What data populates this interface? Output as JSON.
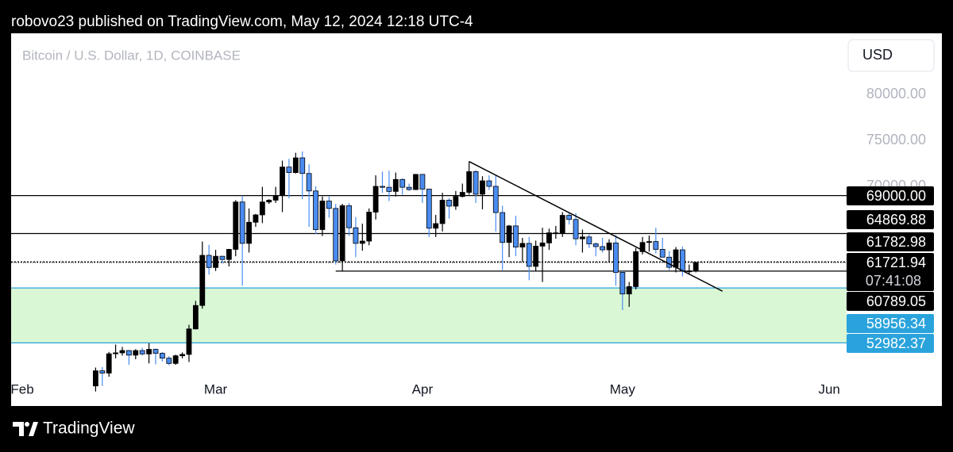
{
  "header": {
    "text": "robovo23 published on TradingView.com, May 12, 2024 12:18 UTC-4"
  },
  "footer": {
    "brand": "TradingView"
  },
  "chart_data": {
    "type": "candlestick",
    "title": "Bitcoin / U.S. Dollar, 1D, COINBASE",
    "currency": "USD",
    "xlim": [
      -1.67,
      123.6
    ],
    "xticks": [
      {
        "value": 0,
        "label": "Feb"
      },
      {
        "value": 29,
        "label": "Mar"
      },
      {
        "value": 60,
        "label": "Apr"
      },
      {
        "value": 90,
        "label": "May"
      },
      {
        "value": 121,
        "label": "Jun"
      }
    ],
    "ylim": [
      46120,
      86640
    ],
    "yticks": [
      {
        "value": 70000,
        "label": "70000.00"
      },
      {
        "value": 75000,
        "label": "75000.00"
      },
      {
        "value": 80000,
        "label": "80000.00"
      }
    ],
    "up_color": "#000000",
    "down_color": "#4a8cf0",
    "candles": {
      "x": [
        11,
        12,
        13,
        14,
        15,
        16,
        17,
        18,
        19,
        20,
        21,
        22,
        23,
        24,
        25,
        26,
        27,
        28,
        29,
        30,
        31,
        32,
        33,
        34,
        35,
        36,
        37,
        38,
        39,
        40,
        41,
        42,
        43,
        44,
        45,
        46,
        47,
        48,
        49,
        50,
        51,
        52,
        53,
        54,
        55,
        56,
        57,
        58,
        59,
        60,
        61,
        62,
        63,
        64,
        65,
        66,
        67,
        68,
        69,
        70,
        71,
        72,
        73,
        74,
        75,
        76,
        77,
        78,
        79,
        80,
        81,
        82,
        83,
        84,
        85,
        86,
        87,
        88,
        89,
        90,
        91,
        92,
        93,
        94,
        95,
        96,
        97,
        98,
        99,
        100,
        101
      ],
      "open": [
        48300,
        49950,
        49700,
        51800,
        51900,
        52150,
        51650,
        52150,
        51780,
        52280,
        51850,
        51320,
        50750,
        51580,
        51730,
        54500,
        57050,
        62500,
        61180,
        62400,
        62050,
        63150,
        68300,
        63800,
        66100,
        66900,
        68300,
        68500,
        69000,
        72100,
        71500,
        73100,
        71400,
        69500,
        65300,
        68400,
        67600,
        61900,
        67900,
        65500,
        63800,
        64050,
        67200,
        70000,
        69900,
        69450,
        70750,
        69900,
        69650,
        71300,
        69700,
        65450,
        65950,
        68500,
        67850,
        68900,
        69350,
        71600,
        69150,
        70600,
        70000,
        67150,
        63900,
        65700,
        63400,
        63800,
        61300,
        63500,
        63850,
        64950,
        64950,
        66850,
        66400,
        64300,
        64500,
        63750,
        63450,
        63100,
        63850,
        60650,
        58300,
        59100,
        62900,
        63900,
        64000,
        63150,
        62300,
        61200,
        63100,
        60800,
        60800
      ],
      "high": [
        50300,
        50350,
        52000,
        52800,
        52550,
        52200,
        52300,
        52450,
        52950,
        52370,
        52000,
        51540,
        51700,
        51950,
        54950,
        57550,
        64000,
        63650,
        63100,
        62450,
        63200,
        68500,
        69000,
        67600,
        67000,
        69950,
        68600,
        69950,
        72800,
        73000,
        73650,
        73800,
        72400,
        70000,
        68900,
        68900,
        68100,
        68100,
        68200,
        66650,
        65950,
        67600,
        71200,
        71600,
        71700,
        71500,
        70900,
        70300,
        71350,
        71300,
        69700,
        66900,
        69300,
        68700,
        69500,
        70300,
        72700,
        71750,
        71100,
        71200,
        71250,
        67900,
        65800,
        66800,
        64400,
        64500,
        64100,
        65500,
        65400,
        65700,
        67200,
        67200,
        67100,
        65300,
        64800,
        63900,
        64400,
        64250,
        64700,
        60800,
        59600,
        63300,
        64500,
        64650,
        65500,
        64400,
        62980,
        63400,
        63450,
        61500,
        61800
      ],
      "low": [
        47700,
        48300,
        49300,
        51300,
        51600,
        50600,
        51200,
        51600,
        50750,
        50650,
        50950,
        50550,
        50600,
        51300,
        50900,
        54450,
        56700,
        60400,
        60800,
        61600,
        61300,
        62400,
        59200,
        62800,
        65600,
        66000,
        68100,
        68200,
        67200,
        68700,
        71400,
        68600,
        65600,
        64800,
        64600,
        66600,
        61500,
        60800,
        64600,
        62300,
        63000,
        63600,
        66400,
        69300,
        68400,
        68900,
        69100,
        69500,
        69600,
        68200,
        64500,
        64500,
        65100,
        66500,
        67450,
        68800,
        69100,
        68200,
        67500,
        69600,
        65100,
        60900,
        62300,
        62400,
        61800,
        59800,
        60800,
        59600,
        63100,
        64300,
        64500,
        65850,
        63600,
        62800,
        63300,
        62400,
        62800,
        61800,
        59200,
        56550,
        56900,
        58800,
        62600,
        62900,
        62700,
        62300,
        60900,
        60650,
        60200,
        60500,
        60650
      ],
      "close": [
        49950,
        49700,
        51800,
        51900,
        52150,
        51650,
        52150,
        51780,
        52280,
        51850,
        51320,
        50750,
        51580,
        51730,
        54500,
        57050,
        62500,
        61180,
        62400,
        62050,
        63150,
        68300,
        63800,
        66100,
        66900,
        68300,
        68500,
        69000,
        72100,
        71500,
        73100,
        71400,
        69500,
        65300,
        68400,
        67600,
        61900,
        67900,
        65500,
        63800,
        64050,
        67200,
        70000,
        69900,
        69450,
        70750,
        69900,
        69650,
        71300,
        69700,
        65450,
        65950,
        68500,
        67850,
        68900,
        69350,
        71600,
        69150,
        70600,
        70000,
        67150,
        63900,
        65700,
        63400,
        63800,
        61300,
        63500,
        63850,
        64950,
        64950,
        66850,
        66400,
        64300,
        64500,
        63750,
        63450,
        63100,
        63850,
        60650,
        58300,
        59100,
        62900,
        63900,
        64000,
        63150,
        62300,
        61200,
        63100,
        60800,
        60800,
        61721.94
      ]
    },
    "levels": [
      {
        "value": 69000,
        "label": "69000.00",
        "color": "#000000"
      },
      {
        "value": 64869.88,
        "label": "64869.88",
        "color": "#000000"
      },
      {
        "value": 61782.98,
        "label": "61782.98",
        "color": "#000000",
        "dashed": true
      },
      {
        "value": 60789.05,
        "label": "60789.05",
        "color": "#000000",
        "from_x": 47
      },
      {
        "value": 58956.34,
        "label": "58956.34",
        "color": "#2aa3dc",
        "zone": true
      },
      {
        "value": 52982.37,
        "label": "52982.37",
        "color": "#2aa3dc",
        "zone": true
      }
    ],
    "zone_color": "#d9f7d5",
    "last_price": {
      "value": 61721.94,
      "label": "61721.94",
      "countdown": "07:41:08"
    },
    "trendline": {
      "x": [
        67,
        105
      ],
      "values": [
        72700,
        58600
      ],
      "color": "#000000"
    }
  }
}
